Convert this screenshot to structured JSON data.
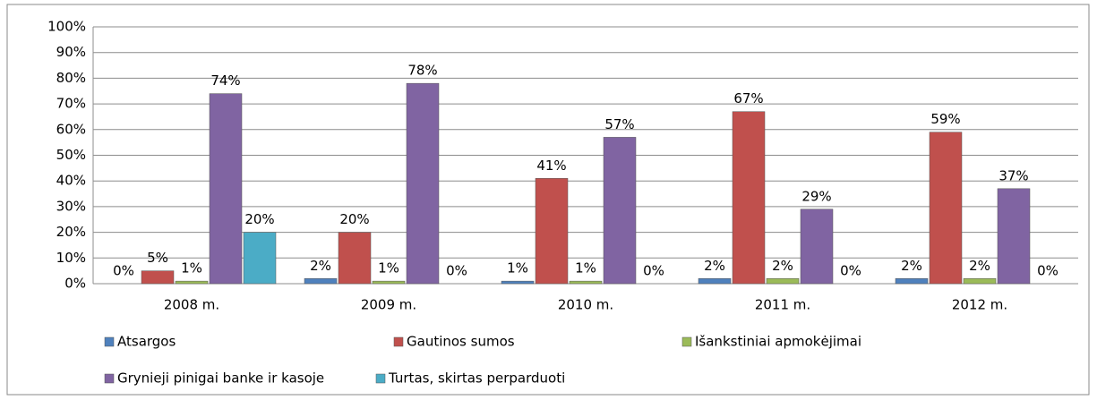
{
  "chart_data": {
    "type": "bar",
    "categories": [
      "2008 m.",
      "2009 m.",
      "2010 m.",
      "2011 m.",
      "2012 m."
    ],
    "series": [
      {
        "name": "Atsargos",
        "color": "#4f81bd",
        "values": [
          0,
          2,
          1,
          2,
          2
        ],
        "value_labels": [
          "0%",
          "2%",
          "1%",
          "2%",
          "2%"
        ]
      },
      {
        "name": "Gautinos sumos",
        "color": "#c0504d",
        "values": [
          5,
          20,
          41,
          67,
          59
        ],
        "value_labels": [
          "5%",
          "20%",
          "41%",
          "67%",
          "59%"
        ]
      },
      {
        "name": "Išankstiniai apmokėjimai",
        "color": "#9bbb59",
        "values": [
          1,
          1,
          1,
          2,
          2
        ],
        "value_labels": [
          "1%",
          "1%",
          "1%",
          "2%",
          "2%"
        ]
      },
      {
        "name": "Grynieji pinigai banke ir kasoje",
        "color": "#8064a2",
        "values": [
          74,
          78,
          57,
          29,
          37
        ],
        "value_labels": [
          "74%",
          "78%",
          "57%",
          "29%",
          "37%"
        ]
      },
      {
        "name": "Turtas, skirtas perparduoti",
        "color": "#4bacc6",
        "values": [
          20,
          0,
          0,
          0,
          0
        ],
        "value_labels": [
          "20%",
          "0%",
          "0%",
          "0%",
          "0%"
        ]
      }
    ],
    "ylim": [
      0,
      100
    ],
    "yticks": [
      {
        "value": 0,
        "label": "0%"
      },
      {
        "value": 10,
        "label": "10%"
      },
      {
        "value": 20,
        "label": "20%"
      },
      {
        "value": 30,
        "label": "30%"
      },
      {
        "value": 40,
        "label": "40%"
      },
      {
        "value": 50,
        "label": "50%"
      },
      {
        "value": 60,
        "label": "60%"
      },
      {
        "value": 70,
        "label": "70%"
      },
      {
        "value": 80,
        "label": "80%"
      },
      {
        "value": 90,
        "label": "90%"
      },
      {
        "value": 100,
        "label": "100%"
      }
    ],
    "grid": true,
    "legend": "bottom"
  }
}
